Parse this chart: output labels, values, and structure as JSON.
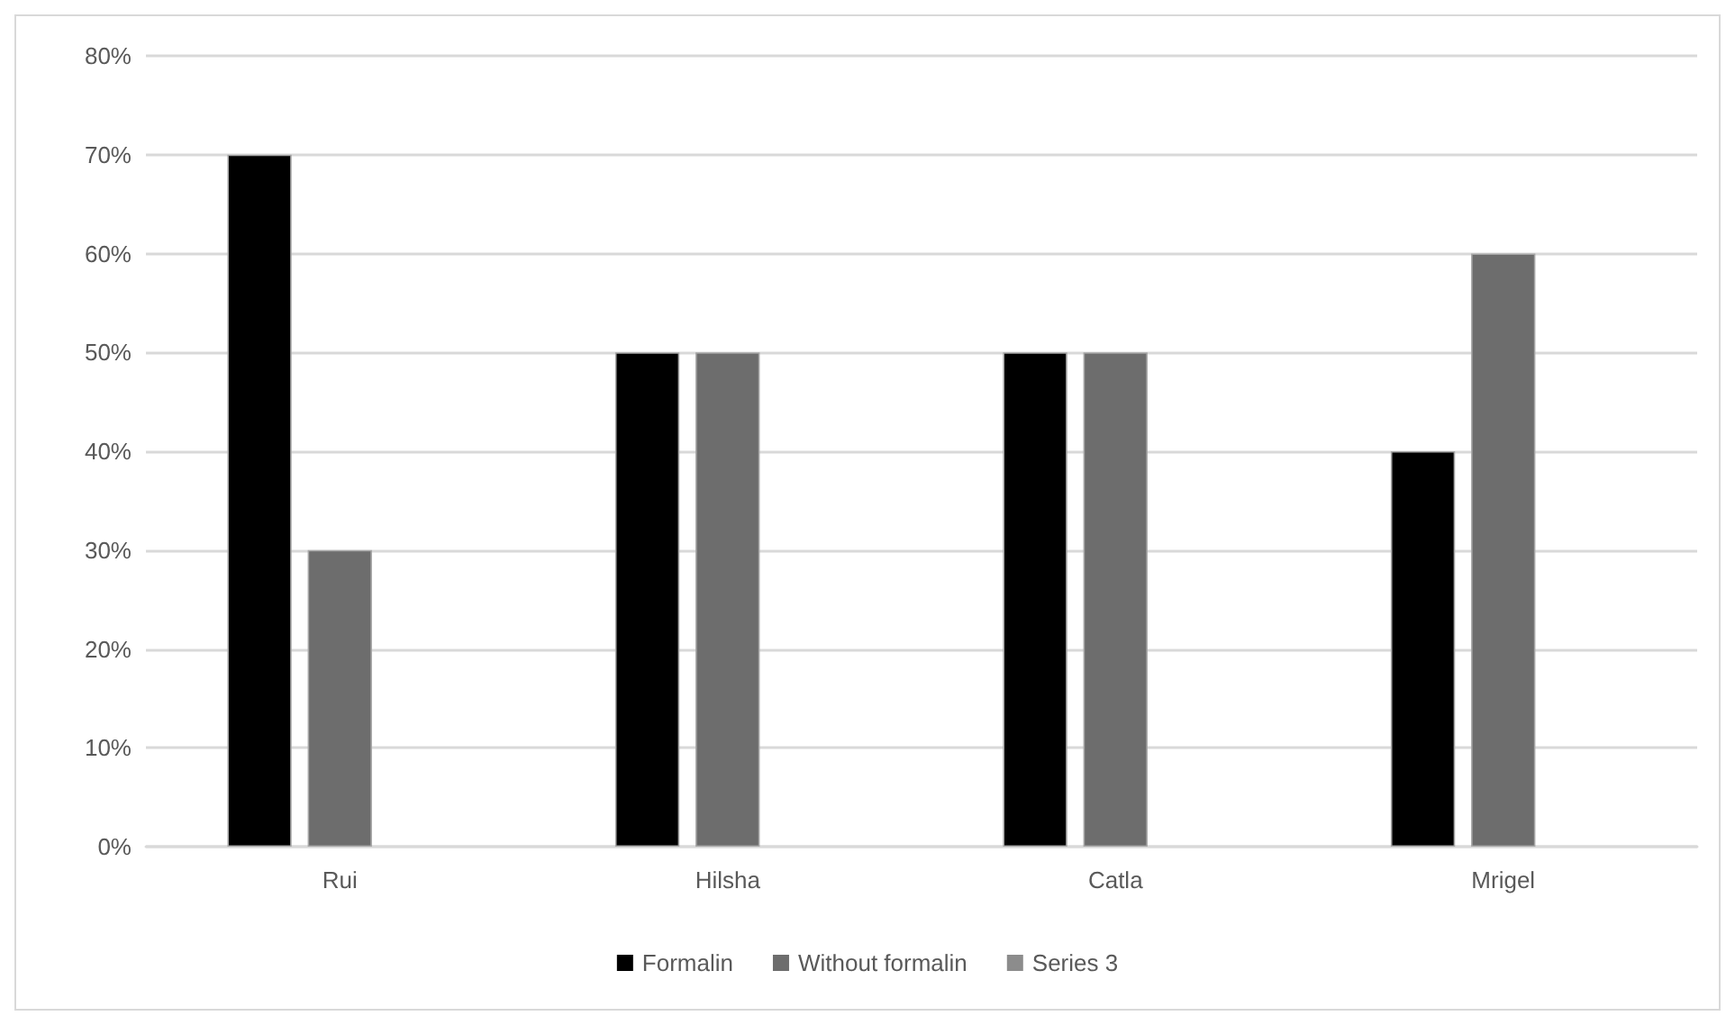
{
  "chart_data": {
    "type": "bar",
    "categories": [
      "Rui",
      "Hilsha",
      "Catla",
      "Mrigel"
    ],
    "series": [
      {
        "name": "Formalin",
        "color": "#000000",
        "values": [
          70,
          50,
          50,
          40
        ]
      },
      {
        "name": "Without formalin",
        "color": "#6d6d6d",
        "values": [
          30,
          50,
          50,
          60
        ]
      },
      {
        "name": "Series 3",
        "color": "#8c8c8c",
        "values": [
          null,
          null,
          null,
          null
        ]
      }
    ],
    "ylim": [
      0,
      80
    ],
    "yticks": [
      {
        "value": 0,
        "label": "0%"
      },
      {
        "value": 10,
        "label": "10%"
      },
      {
        "value": 20,
        "label": "20%"
      },
      {
        "value": 30,
        "label": "30%"
      },
      {
        "value": 40,
        "label": "40%"
      },
      {
        "value": 50,
        "label": "50%"
      },
      {
        "value": 60,
        "label": "60%"
      },
      {
        "value": 70,
        "label": "70%"
      },
      {
        "value": 80,
        "label": "80%"
      }
    ],
    "grid": "y",
    "legend": "bottom"
  }
}
